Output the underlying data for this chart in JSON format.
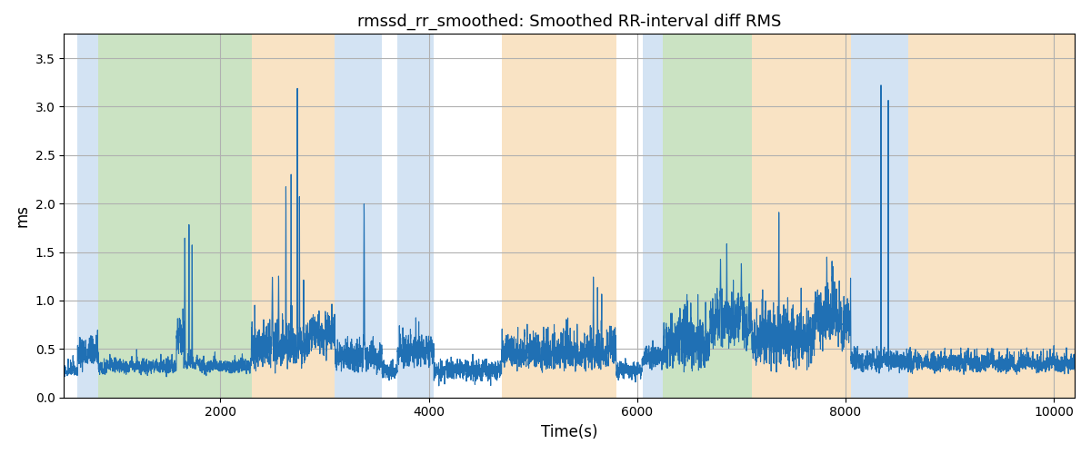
{
  "title": "rmssd_rr_smoothed: Smoothed RR-interval diff RMS",
  "xlabel": "Time(s)",
  "ylabel": "ms",
  "xlim": [
    500,
    10200
  ],
  "ylim": [
    0,
    3.75
  ],
  "yticks": [
    0.0,
    0.5,
    1.0,
    1.5,
    2.0,
    2.5,
    3.0,
    3.5
  ],
  "xticks": [
    2000,
    4000,
    6000,
    8000,
    10000
  ],
  "line_color": "#2070b4",
  "line_width": 0.8,
  "background_color": "#ffffff",
  "grid_color": "#b0b0b0",
  "bands": [
    {
      "xmin": 630,
      "xmax": 830,
      "color": "#a8c8e8",
      "alpha": 0.5
    },
    {
      "xmin": 830,
      "xmax": 2300,
      "color": "#98c888",
      "alpha": 0.5
    },
    {
      "xmin": 2300,
      "xmax": 3100,
      "color": "#f5c88a",
      "alpha": 0.5
    },
    {
      "xmin": 3100,
      "xmax": 3550,
      "color": "#a8c8e8",
      "alpha": 0.5
    },
    {
      "xmin": 3700,
      "xmax": 4050,
      "color": "#a8c8e8",
      "alpha": 0.5
    },
    {
      "xmin": 4700,
      "xmax": 5800,
      "color": "#f5c88a",
      "alpha": 0.5
    },
    {
      "xmin": 6050,
      "xmax": 6250,
      "color": "#a8c8e8",
      "alpha": 0.5
    },
    {
      "xmin": 6250,
      "xmax": 7100,
      "color": "#98c888",
      "alpha": 0.5
    },
    {
      "xmin": 7100,
      "xmax": 8050,
      "color": "#f5c88a",
      "alpha": 0.5
    },
    {
      "xmin": 8050,
      "xmax": 8600,
      "color": "#a8c8e8",
      "alpha": 0.5
    },
    {
      "xmin": 8600,
      "xmax": 10200,
      "color": "#f5c88a",
      "alpha": 0.5
    }
  ],
  "seed": 17,
  "x_start": 500,
  "x_end": 10200,
  "n_points": 9701
}
